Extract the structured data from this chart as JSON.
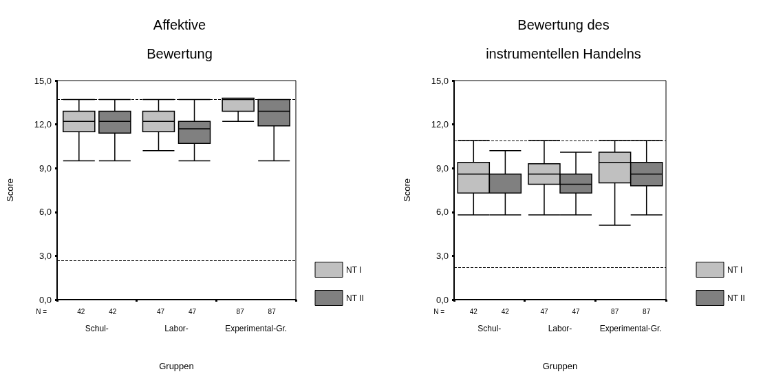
{
  "chart_data": [
    {
      "type": "box",
      "title": "Affektive\nBewertung",
      "xlabel": "Gruppen",
      "ylabel": "Score",
      "categories": [
        "Schul-",
        "Labor-",
        "Experimental-Gr."
      ],
      "series": [
        {
          "name": "NT I",
          "color": "#c0c0c0",
          "boxes": [
            {
              "low": 9.5,
              "q1": 11.5,
              "median": 12.2,
              "q3": 12.9,
              "high": 13.7
            },
            {
              "low": 10.2,
              "q1": 11.5,
              "median": 12.2,
              "q3": 12.9,
              "high": 13.7
            },
            {
              "low": 12.2,
              "q1": 12.9,
              "median": 13.7,
              "q3": 13.8,
              "high": 13.8
            }
          ]
        },
        {
          "name": "NT II",
          "color": "#808080",
          "boxes": [
            {
              "low": 9.5,
              "q1": 11.4,
              "median": 12.2,
              "q3": 12.9,
              "high": 13.7
            },
            {
              "low": 9.5,
              "q1": 10.7,
              "median": 11.7,
              "q3": 12.2,
              "high": 13.7
            },
            {
              "low": 9.5,
              "q1": 11.9,
              "median": 12.9,
              "q3": 13.7,
              "high": 13.7
            }
          ]
        }
      ],
      "ylim": [
        0,
        15
      ],
      "yticks": [
        {
          "value": 0,
          "label": "0,0"
        },
        {
          "value": 3,
          "label": "3,0"
        },
        {
          "value": 6,
          "label": "6,0"
        },
        {
          "value": 9,
          "label": "9,0"
        },
        {
          "value": 12,
          "label": "12,0"
        },
        {
          "value": 15,
          "label": "15,0"
        }
      ],
      "ref_lines": [
        {
          "axis": "y",
          "value": 13.7,
          "color": "#000000",
          "line_style": "dashed"
        },
        {
          "axis": "y",
          "value": 2.7,
          "color": "#000000",
          "line_style": "dashed"
        }
      ],
      "annotations": [
        "N =",
        "42",
        "42",
        "47",
        "47",
        "87",
        "87"
      ],
      "grid": false,
      "legend": "right"
    },
    {
      "type": "box",
      "title": "Bewertung des\ninstrumentellen Handelns",
      "xlabel": "Gruppen",
      "ylabel": "Score",
      "categories": [
        "Schul-",
        "Labor-",
        "Experimental-Gr."
      ],
      "series": [
        {
          "name": "NT I",
          "color": "#c0c0c0",
          "boxes": [
            {
              "low": 5.8,
              "q1": 7.3,
              "median": 8.6,
              "q3": 9.4,
              "high": 10.9
            },
            {
              "low": 5.8,
              "q1": 7.9,
              "median": 8.6,
              "q3": 9.3,
              "high": 10.9
            },
            {
              "low": 5.1,
              "q1": 8.0,
              "median": 9.4,
              "q3": 10.1,
              "high": 10.9
            }
          ]
        },
        {
          "name": "NT II",
          "color": "#808080",
          "boxes": [
            {
              "low": 5.8,
              "q1": 7.3,
              "median": 8.6,
              "q3": 8.6,
              "high": 10.2
            },
            {
              "low": 5.8,
              "q1": 7.3,
              "median": 7.9,
              "q3": 8.6,
              "high": 10.1
            },
            {
              "low": 5.8,
              "q1": 7.8,
              "median": 8.6,
              "q3": 9.4,
              "high": 10.9
            }
          ]
        }
      ],
      "ylim": [
        0,
        15
      ],
      "yticks": [
        {
          "value": 0,
          "label": "0,0"
        },
        {
          "value": 3,
          "label": "3,0"
        },
        {
          "value": 6,
          "label": "6,0"
        },
        {
          "value": 9,
          "label": "9,0"
        },
        {
          "value": 12,
          "label": "12,0"
        },
        {
          "value": 15,
          "label": "15,0"
        }
      ],
      "ref_lines": [
        {
          "axis": "y",
          "value": 10.9,
          "color": "#000000",
          "line_style": "dashed"
        },
        {
          "axis": "y",
          "value": 2.2,
          "color": "#000000",
          "line_style": "dashed"
        }
      ],
      "annotations": [
        "N =",
        "42",
        "42",
        "47",
        "47",
        "87",
        "87"
      ],
      "grid": false,
      "legend": "right"
    }
  ]
}
